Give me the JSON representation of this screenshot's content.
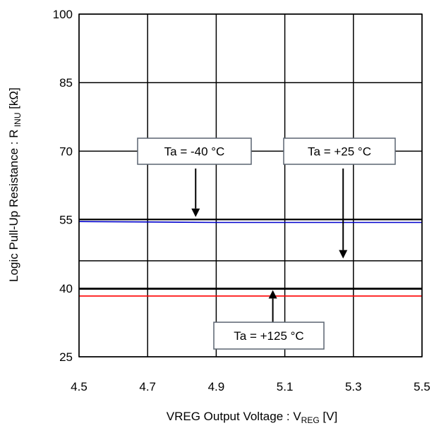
{
  "chart_data": {
    "type": "line",
    "x": [
      4.5,
      4.7,
      4.9,
      5.1,
      5.3,
      5.5
    ],
    "xlim": [
      4.5,
      5.5
    ],
    "ylim": [
      25,
      100
    ],
    "xticks": [
      4.5,
      4.7,
      4.9,
      5.1,
      5.3,
      5.5
    ],
    "yticks": [
      25,
      40,
      55,
      70,
      85,
      100
    ],
    "x_tick_labels": [
      "4.5",
      "4.7",
      "4.9",
      "5.1",
      "5.3",
      "5.5"
    ],
    "y_tick_labels": [
      "25",
      "40",
      "55",
      "70",
      "85",
      "100"
    ],
    "xlabel": {
      "main": "VREG Output Voltage : V",
      "sub": "REG",
      "unit": " [V]"
    },
    "ylabel": {
      "main": "Logic Pull-Up Resistance : R",
      "sub": " INU",
      "unit": " [kΩ]"
    },
    "grid": true,
    "series": [
      {
        "name": "Ta = -40 °C",
        "color": "#000000",
        "values": [
          55.1,
          55.1,
          55.1,
          55.1,
          55.1,
          55.1
        ]
      },
      {
        "name": "Ta = +25 °C",
        "color": "#0000cc",
        "values": [
          54.6,
          54.5,
          54.4,
          54.4,
          54.4,
          54.4
        ]
      },
      {
        "name": "Ta = +125 °C",
        "color": "#ff0000",
        "values": [
          38.3,
          38.3,
          38.3,
          38.3,
          38.3,
          38.3
        ]
      }
    ],
    "extra_lines": [
      {
        "y": 46.0,
        "color": "#000000"
      },
      {
        "y": 39.8,
        "color": "#000000"
      }
    ],
    "annotations": [
      {
        "text": "Ta = -40 °C",
        "arrow_from_y": 66.2,
        "arrow_to_y": 55.6,
        "arrow_x": 4.84
      },
      {
        "text": "Ta = +25 °C",
        "arrow_from_y": 66.2,
        "arrow_to_y": 46.5,
        "arrow_x": 5.27
      },
      {
        "text": "Ta = +125 °C",
        "arrow_from_y": 30.5,
        "arrow_to_y": 39.6,
        "arrow_x": 5.065
      }
    ]
  }
}
